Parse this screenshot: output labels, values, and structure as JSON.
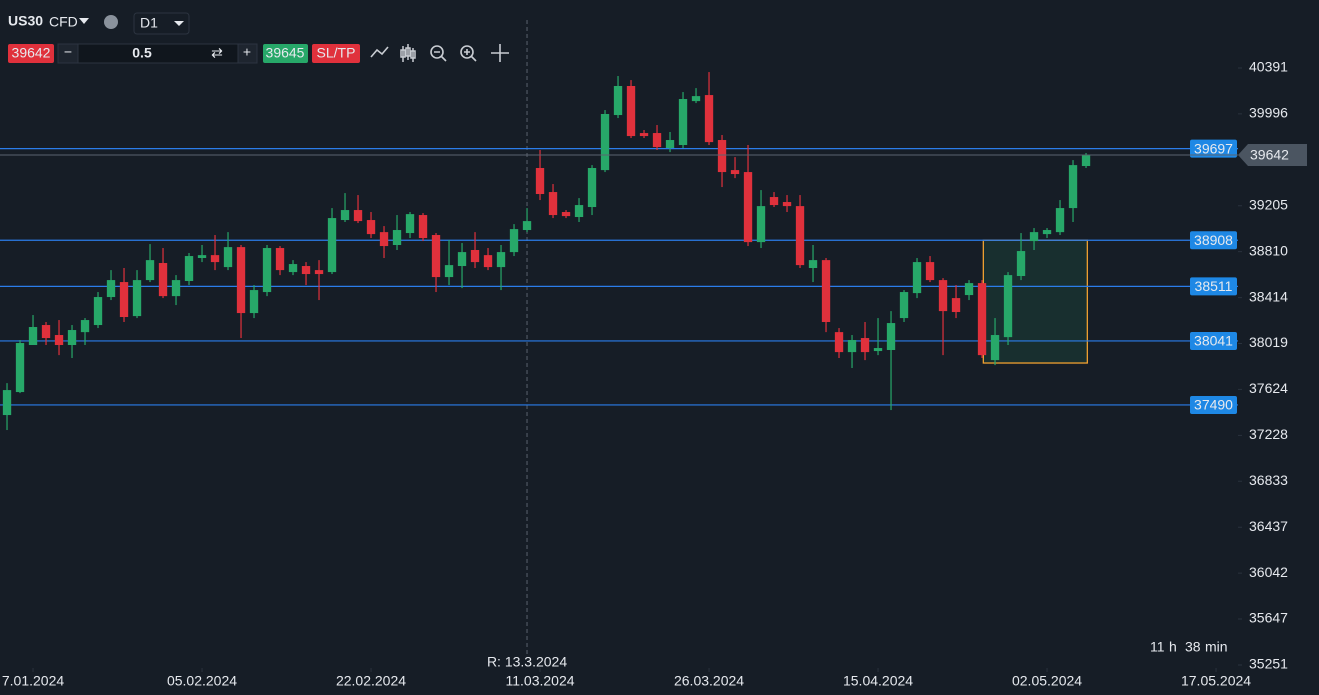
{
  "toolbar": {
    "symbol": "US30",
    "kind": "CFD",
    "timeframe": "D1",
    "sell": 39642,
    "volume": 0.5,
    "buy": 39645,
    "sltp": "SL/TP"
  },
  "timer": {
    "hours": 11,
    "hours_unit": "h",
    "minutes": 38,
    "minutes_unit": "min"
  },
  "chart_data": {
    "type": "candlestick",
    "open": [
      37403,
      37601,
      38006,
      38178,
      38092,
      38006,
      38117,
      38178,
      38419,
      38548,
      38255,
      38565,
      38712,
      38427,
      38557,
      38755,
      38780,
      38677,
      38849,
      38281,
      38462,
      38841,
      38634,
      38686,
      38651,
      38634,
      39082,
      39168,
      39082,
      38978,
      38867,
      38970,
      39125,
      38953,
      38591,
      38686,
      38824,
      38780,
      38677,
      38806,
      38996,
      39530,
      39323,
      39151,
      39108,
      39194,
      39512,
      39986,
      40236,
      39831,
      39831,
      39702,
      39728,
      40106,
      40158,
      39771,
      39512,
      39495,
      38892,
      39280,
      39237,
      39202,
      38669,
      38737,
      38117,
      37945,
      38066,
      37954,
      37963,
      38238,
      38453,
      38720,
      38565,
      38410,
      38436,
      38539,
      37876,
      38074,
      38600,
      38901,
      38961,
      38978,
      39185,
      39547
    ],
    "high": [
      37678,
      38049,
      38264,
      38204,
      38221,
      38178,
      38238,
      38462,
      38651,
      38669,
      38651,
      38875,
      38841,
      38608,
      38798,
      38867,
      38953,
      38978,
      38867,
      38522,
      38867,
      38858,
      38737,
      38720,
      38737,
      39185,
      39314,
      39297,
      39151,
      39030,
      39125,
      39151,
      39142,
      38970,
      38910,
      38884,
      38978,
      38841,
      38867,
      39047,
      39185,
      39685,
      39392,
      39168,
      39271,
      39555,
      40029,
      40322,
      40287,
      39857,
      39900,
      39840,
      40184,
      40218,
      40356,
      39814,
      39624,
      39728,
      39340,
      39323,
      39297,
      39297,
      38867,
      38755,
      38152,
      38092,
      38204,
      38238,
      38298,
      38479,
      38755,
      38772,
      38582,
      38522,
      38565,
      38565,
      38238,
      38634,
      38970,
      39013,
      39013,
      39254,
      39598,
      39659
    ],
    "low": [
      37274,
      37592,
      38006,
      38006,
      37919,
      37894,
      38006,
      38152,
      38393,
      38204,
      38238,
      38548,
      38410,
      38350,
      38522,
      38720,
      38651,
      38651,
      38066,
      38238,
      38427,
      38608,
      38608,
      38522,
      38393,
      38617,
      39065,
      39056,
      38927,
      38755,
      38824,
      38927,
      38901,
      38462,
      38522,
      38496,
      38669,
      38651,
      38479,
      38772,
      38978,
      39254,
      39099,
      39099,
      39065,
      39125,
      39495,
      39960,
      39788,
      39788,
      39685,
      39667,
      39702,
      40089,
      39728,
      39366,
      39443,
      38858,
      38841,
      39194,
      39151,
      38669,
      38548,
      38117,
      37894,
      37808,
      37876,
      37919,
      37446,
      38204,
      38410,
      38548,
      37919,
      38238,
      38393,
      37894,
      37833,
      38006,
      38565,
      38824,
      38927,
      38953,
      39065,
      39530
    ],
    "close": [
      37618,
      38023,
      38161,
      38066,
      38006,
      38135,
      38221,
      38419,
      38565,
      38247,
      38565,
      38737,
      38427,
      38565,
      38772,
      38780,
      38720,
      38849,
      38281,
      38479,
      38841,
      38651,
      38703,
      38617,
      38617,
      39099,
      39168,
      39073,
      38961,
      38858,
      38996,
      39133,
      38927,
      38591,
      38694,
      38806,
      38720,
      38677,
      38806,
      39004,
      39073,
      39306,
      39125,
      39116,
      39211,
      39530,
      39995,
      40236,
      39805,
      39805,
      39710,
      39771,
      40124,
      40149,
      39753,
      39495,
      39478,
      38892,
      39202,
      39211,
      39202,
      38694,
      38737,
      38204,
      37945,
      38049,
      37945,
      37980,
      38195,
      38462,
      38720,
      38565,
      38298,
      38290,
      38539,
      37919,
      38092,
      38608,
      38815,
      38978,
      38996,
      39185,
      39555,
      39642
    ],
    "up_color": "#27a869",
    "down_color": "#e0313c",
    "ylim": [
      35251,
      40391
    ],
    "yticks": [
      40391,
      39996,
      39205,
      38810,
      38414,
      38019,
      37624,
      37228,
      36833,
      36437,
      36042,
      35647,
      35251
    ],
    "xlim": [
      -0.54,
      94.69
    ],
    "xticks": [
      {
        "value": 2,
        "label": "7.01.2024"
      },
      {
        "value": 15,
        "label": "05.02.2024"
      },
      {
        "value": 28,
        "label": "22.02.2024"
      },
      {
        "value": 41,
        "label": "11.03.2024"
      },
      {
        "value": 54,
        "label": "26.03.2024"
      },
      {
        "value": 67,
        "label": "15.04.2024"
      },
      {
        "value": 80,
        "label": "02.05.2024"
      },
      {
        "value": 93,
        "label": "17.05.2024"
      }
    ],
    "levels": [
      39697,
      38908,
      38511,
      38041,
      37490
    ],
    "level_color": "#2b7de9",
    "last": 39642,
    "vline": {
      "x": 40,
      "label": "R: 13.3.2024"
    },
    "box": {
      "x": [
        75.1,
        83.1
      ],
      "y": [
        37851,
        38908
      ],
      "color": "#f0a030"
    }
  }
}
